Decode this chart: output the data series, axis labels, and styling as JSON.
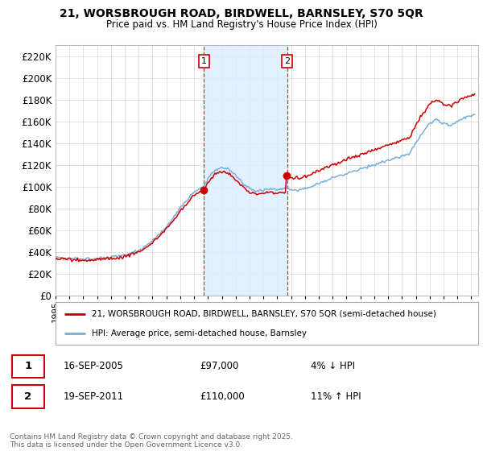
{
  "title": "21, WORSBROUGH ROAD, BIRDWELL, BARNSLEY, S70 5QR",
  "subtitle": "Price paid vs. HM Land Registry's House Price Index (HPI)",
  "red_label": "21, WORSBROUGH ROAD, BIRDWELL, BARNSLEY, S70 5QR (semi-detached house)",
  "blue_label": "HPI: Average price, semi-detached house, Barnsley",
  "transaction1_date": "16-SEP-2005",
  "transaction1_price": 97000,
  "transaction1_pct": "4% ↓ HPI",
  "transaction2_date": "19-SEP-2011",
  "transaction2_price": 110000,
  "transaction2_pct": "11% ↑ HPI",
  "footnote": "Contains HM Land Registry data © Crown copyright and database right 2025.\nThis data is licensed under the Open Government Licence v3.0.",
  "red_color": "#cc0000",
  "blue_color": "#7aaed6",
  "shaded_color": "#ddeeff",
  "grid_color": "#dddddd",
  "ylim": [
    0,
    230000
  ],
  "yticks": [
    0,
    20000,
    40000,
    60000,
    80000,
    100000,
    120000,
    140000,
    160000,
    180000,
    200000,
    220000
  ],
  "t1_year": 2005.708,
  "t2_year": 2011.708
}
